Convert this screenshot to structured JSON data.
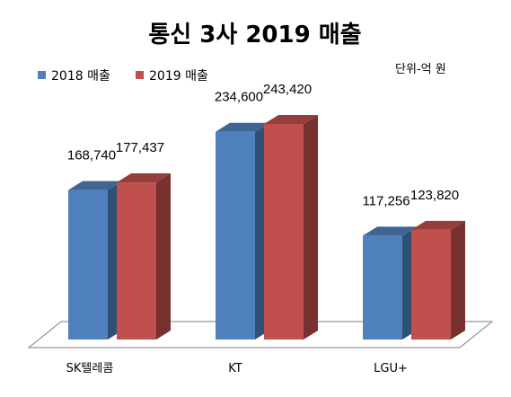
{
  "chart_data": {
    "type": "bar",
    "title": "통신 3사 2019 매출",
    "unit": "단위-억  원",
    "categories": [
      "SK텔레콤",
      "KT",
      "LGU+"
    ],
    "series": [
      {
        "name": "2018 매출",
        "color": "#4f81bd",
        "values": [
          168740,
          234600,
          117256
        ],
        "labels": [
          "168,740",
          "234,600",
          "117,256"
        ]
      },
      {
        "name": "2019 매출",
        "color": "#c0504d",
        "values": [
          177437,
          243420,
          123820
        ],
        "labels": [
          "177,437",
          "243,420",
          "123,820"
        ]
      }
    ],
    "legend": "top-left",
    "grid": false,
    "ylim": [
      0,
      250000
    ]
  }
}
